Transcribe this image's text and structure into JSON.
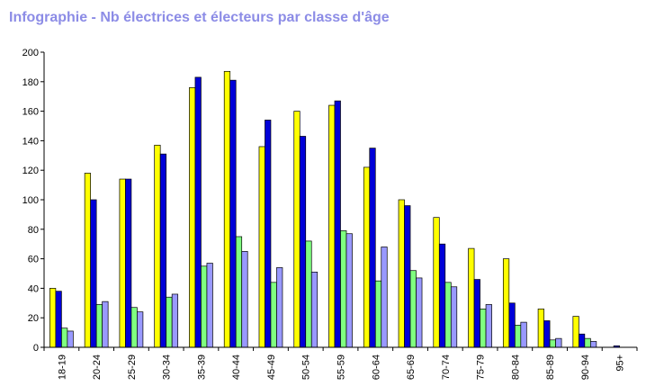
{
  "title": "Infographie - Nb électrices et électeurs par classe d'âge",
  "colors": {
    "title": "#8C8CE6",
    "series": [
      "#FFFF00",
      "#0000D8",
      "#80FF80",
      "#9999FF"
    ],
    "axis": "#000000"
  },
  "chart_data": {
    "type": "bar",
    "title": "Infographie - Nb électrices et électeurs par classe d'âge",
    "xlabel": "",
    "ylabel": "",
    "ylim": [
      0,
      200
    ],
    "yticks": [
      0,
      20,
      40,
      60,
      80,
      100,
      120,
      140,
      160,
      180,
      200
    ],
    "grid": false,
    "legend": "none",
    "categories": [
      "18-19",
      "20-24",
      "25-29",
      "30-34",
      "35-39",
      "40-44",
      "45-49",
      "50-54",
      "55-59",
      "60-64",
      "65-69",
      "70-74",
      "75-79",
      "80-84",
      "85-89",
      "90-94",
      "95+"
    ],
    "series": [
      {
        "color": "#FFFF00",
        "values": [
          40,
          118,
          114,
          137,
          176,
          187,
          136,
          160,
          164,
          122,
          100,
          88,
          67,
          60,
          26,
          21,
          0
        ]
      },
      {
        "color": "#0000D8",
        "values": [
          38,
          100,
          114,
          131,
          183,
          181,
          154,
          143,
          167,
          135,
          96,
          70,
          46,
          30,
          18,
          9,
          1
        ]
      },
      {
        "color": "#80FF80",
        "values": [
          13,
          29,
          27,
          34,
          55,
          75,
          44,
          72,
          79,
          45,
          52,
          44,
          26,
          15,
          5,
          6,
          0
        ]
      },
      {
        "color": "#9999FF",
        "values": [
          11,
          31,
          24,
          36,
          57,
          65,
          54,
          51,
          77,
          68,
          47,
          41,
          29,
          17,
          6,
          4,
          0
        ]
      }
    ]
  }
}
